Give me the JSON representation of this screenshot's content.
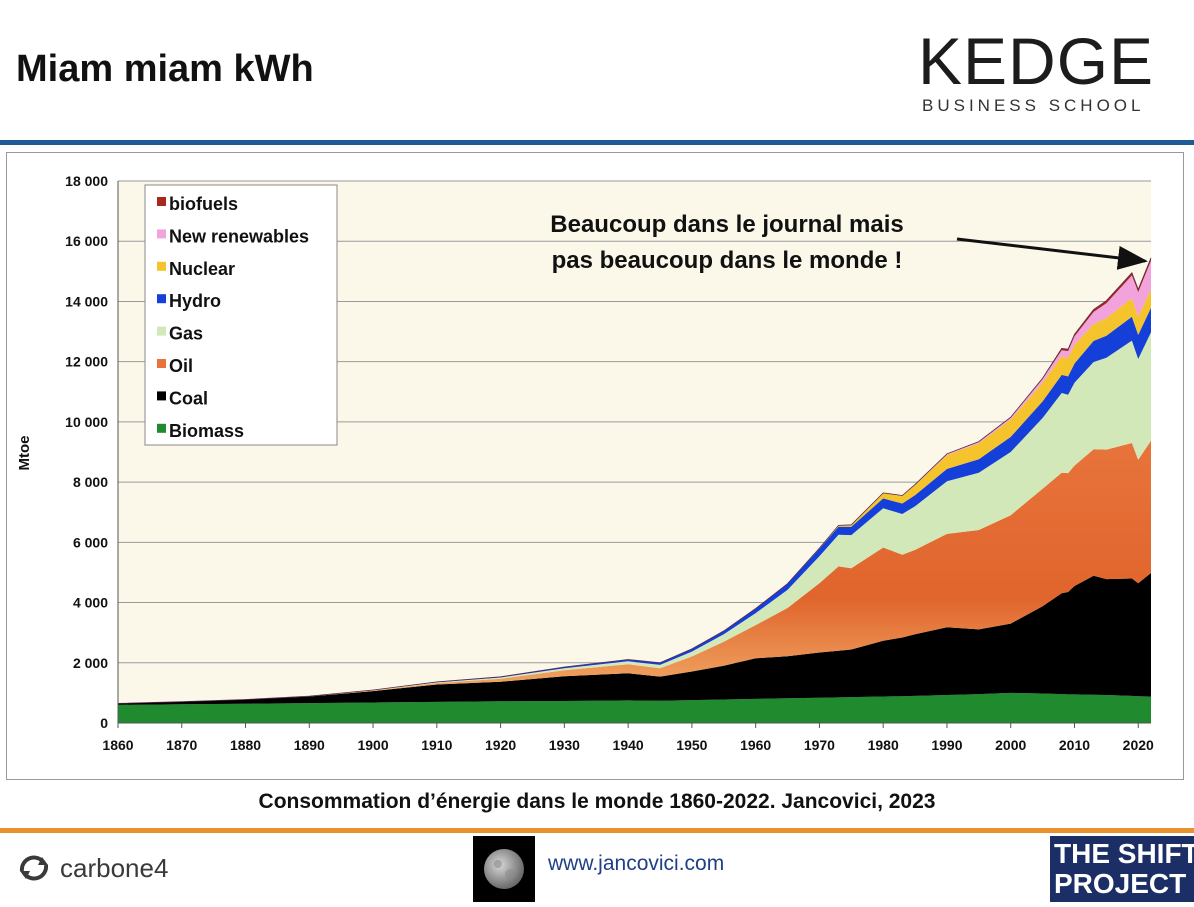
{
  "slide": {
    "title": "Miam miam kWh",
    "caption": "Consommation d’énergie dans le monde 1860-2022. Jancovici, 2023"
  },
  "branding": {
    "kedge_main": "KEDGE",
    "kedge_sub": "BUSINESS SCHOOL",
    "carbone4": "carbone4",
    "url": "www.jancovici.com",
    "shift_line1": "THE SHIFT",
    "shift_line2": "PROJECT"
  },
  "colors": {
    "rule_top": "#1f5a96",
    "rule_bottom": "#e8912f",
    "plot_bg": "#fbf8ea"
  },
  "chart_data": {
    "type": "area",
    "stacked": true,
    "ylabel": "Mtoe",
    "xlabel": "",
    "ylim": [
      0,
      18000
    ],
    "xlim": [
      1860,
      2022
    ],
    "yticks": [
      "0",
      "2 000",
      "4 000",
      "6 000",
      "8 000",
      "10 000",
      "12 000",
      "14 000",
      "16 000",
      "18 000"
    ],
    "xticks": [
      "1860",
      "1870",
      "1880",
      "1890",
      "1900",
      "1910",
      "1920",
      "1930",
      "1940",
      "1950",
      "1960",
      "1970",
      "1980",
      "1990",
      "2000",
      "2010",
      "2020"
    ],
    "grid": true,
    "legend_position": "top-left",
    "annotation": {
      "line1": "Beaucoup dans le journal mais",
      "line2": "pas beaucoup dans le monde !",
      "target_x": 2022,
      "target_y": 15400
    },
    "x": [
      1860,
      1870,
      1880,
      1890,
      1900,
      1910,
      1920,
      1930,
      1940,
      1945,
      1950,
      1955,
      1960,
      1965,
      1970,
      1973,
      1975,
      1980,
      1983,
      1985,
      1990,
      1995,
      2000,
      2005,
      2008,
      2009,
      2010,
      2013,
      2015,
      2019,
      2020,
      2022
    ],
    "series": [
      {
        "name": "Biomass",
        "color": "#1f8a2e",
        "values": [
          600,
          620,
          640,
          660,
          680,
          700,
          720,
          730,
          750,
          740,
          760,
          780,
          800,
          820,
          840,
          850,
          860,
          880,
          890,
          900,
          930,
          960,
          1000,
          980,
          960,
          950,
          950,
          940,
          930,
          900,
          890,
          880
        ]
      },
      {
        "name": "Coal",
        "color": "#000000",
        "values": [
          50,
          90,
          140,
          220,
          380,
          580,
          650,
          820,
          900,
          800,
          950,
          1120,
          1350,
          1400,
          1500,
          1550,
          1580,
          1850,
          1950,
          2050,
          2250,
          2150,
          2300,
          2900,
          3350,
          3400,
          3600,
          3950,
          3850,
          3900,
          3750,
          4100
        ]
      },
      {
        "name": "Oil",
        "color": "#e8743b",
        "values": [
          0,
          0,
          0,
          10,
          20,
          50,
          100,
          200,
          300,
          280,
          500,
          800,
          1100,
          1600,
          2300,
          2800,
          2700,
          3100,
          2750,
          2800,
          3100,
          3300,
          3600,
          3900,
          4000,
          3950,
          4000,
          4200,
          4300,
          4500,
          4100,
          4400
        ]
      },
      {
        "name": "Gas",
        "color": "#d3e8b9",
        "values": [
          0,
          0,
          0,
          0,
          10,
          20,
          40,
          70,
          100,
          110,
          160,
          250,
          400,
          600,
          900,
          1050,
          1100,
          1300,
          1350,
          1450,
          1750,
          1900,
          2100,
          2350,
          2650,
          2600,
          2750,
          2900,
          3050,
          3400,
          3350,
          3600
        ]
      },
      {
        "name": "Hydro",
        "color": "#1440d9",
        "values": [
          0,
          0,
          0,
          0,
          5,
          15,
          25,
          40,
          60,
          70,
          90,
          110,
          150,
          200,
          250,
          270,
          280,
          330,
          350,
          370,
          410,
          450,
          500,
          550,
          600,
          610,
          640,
          700,
          730,
          790,
          800,
          810
        ]
      },
      {
        "name": "Nuclear",
        "color": "#f5c42c",
        "values": [
          0,
          0,
          0,
          0,
          0,
          0,
          0,
          0,
          0,
          0,
          0,
          0,
          1,
          5,
          20,
          40,
          60,
          170,
          250,
          330,
          460,
          530,
          580,
          620,
          620,
          610,
          620,
          560,
          580,
          620,
          600,
          610
        ]
      },
      {
        "name": "New renewables",
        "color": "#f2a3dc",
        "values": [
          0,
          0,
          0,
          0,
          0,
          0,
          0,
          0,
          0,
          0,
          0,
          0,
          0,
          0,
          0,
          2,
          3,
          8,
          10,
          15,
          30,
          45,
          60,
          120,
          200,
          230,
          280,
          400,
          500,
          750,
          820,
          950
        ]
      },
      {
        "name": "biofuels",
        "color": "#a8281d",
        "values": [
          0,
          0,
          0,
          0,
          0,
          0,
          0,
          0,
          0,
          0,
          0,
          0,
          0,
          0,
          0,
          0,
          0,
          5,
          6,
          8,
          10,
          12,
          15,
          30,
          60,
          65,
          70,
          80,
          85,
          95,
          90,
          100
        ]
      }
    ]
  }
}
